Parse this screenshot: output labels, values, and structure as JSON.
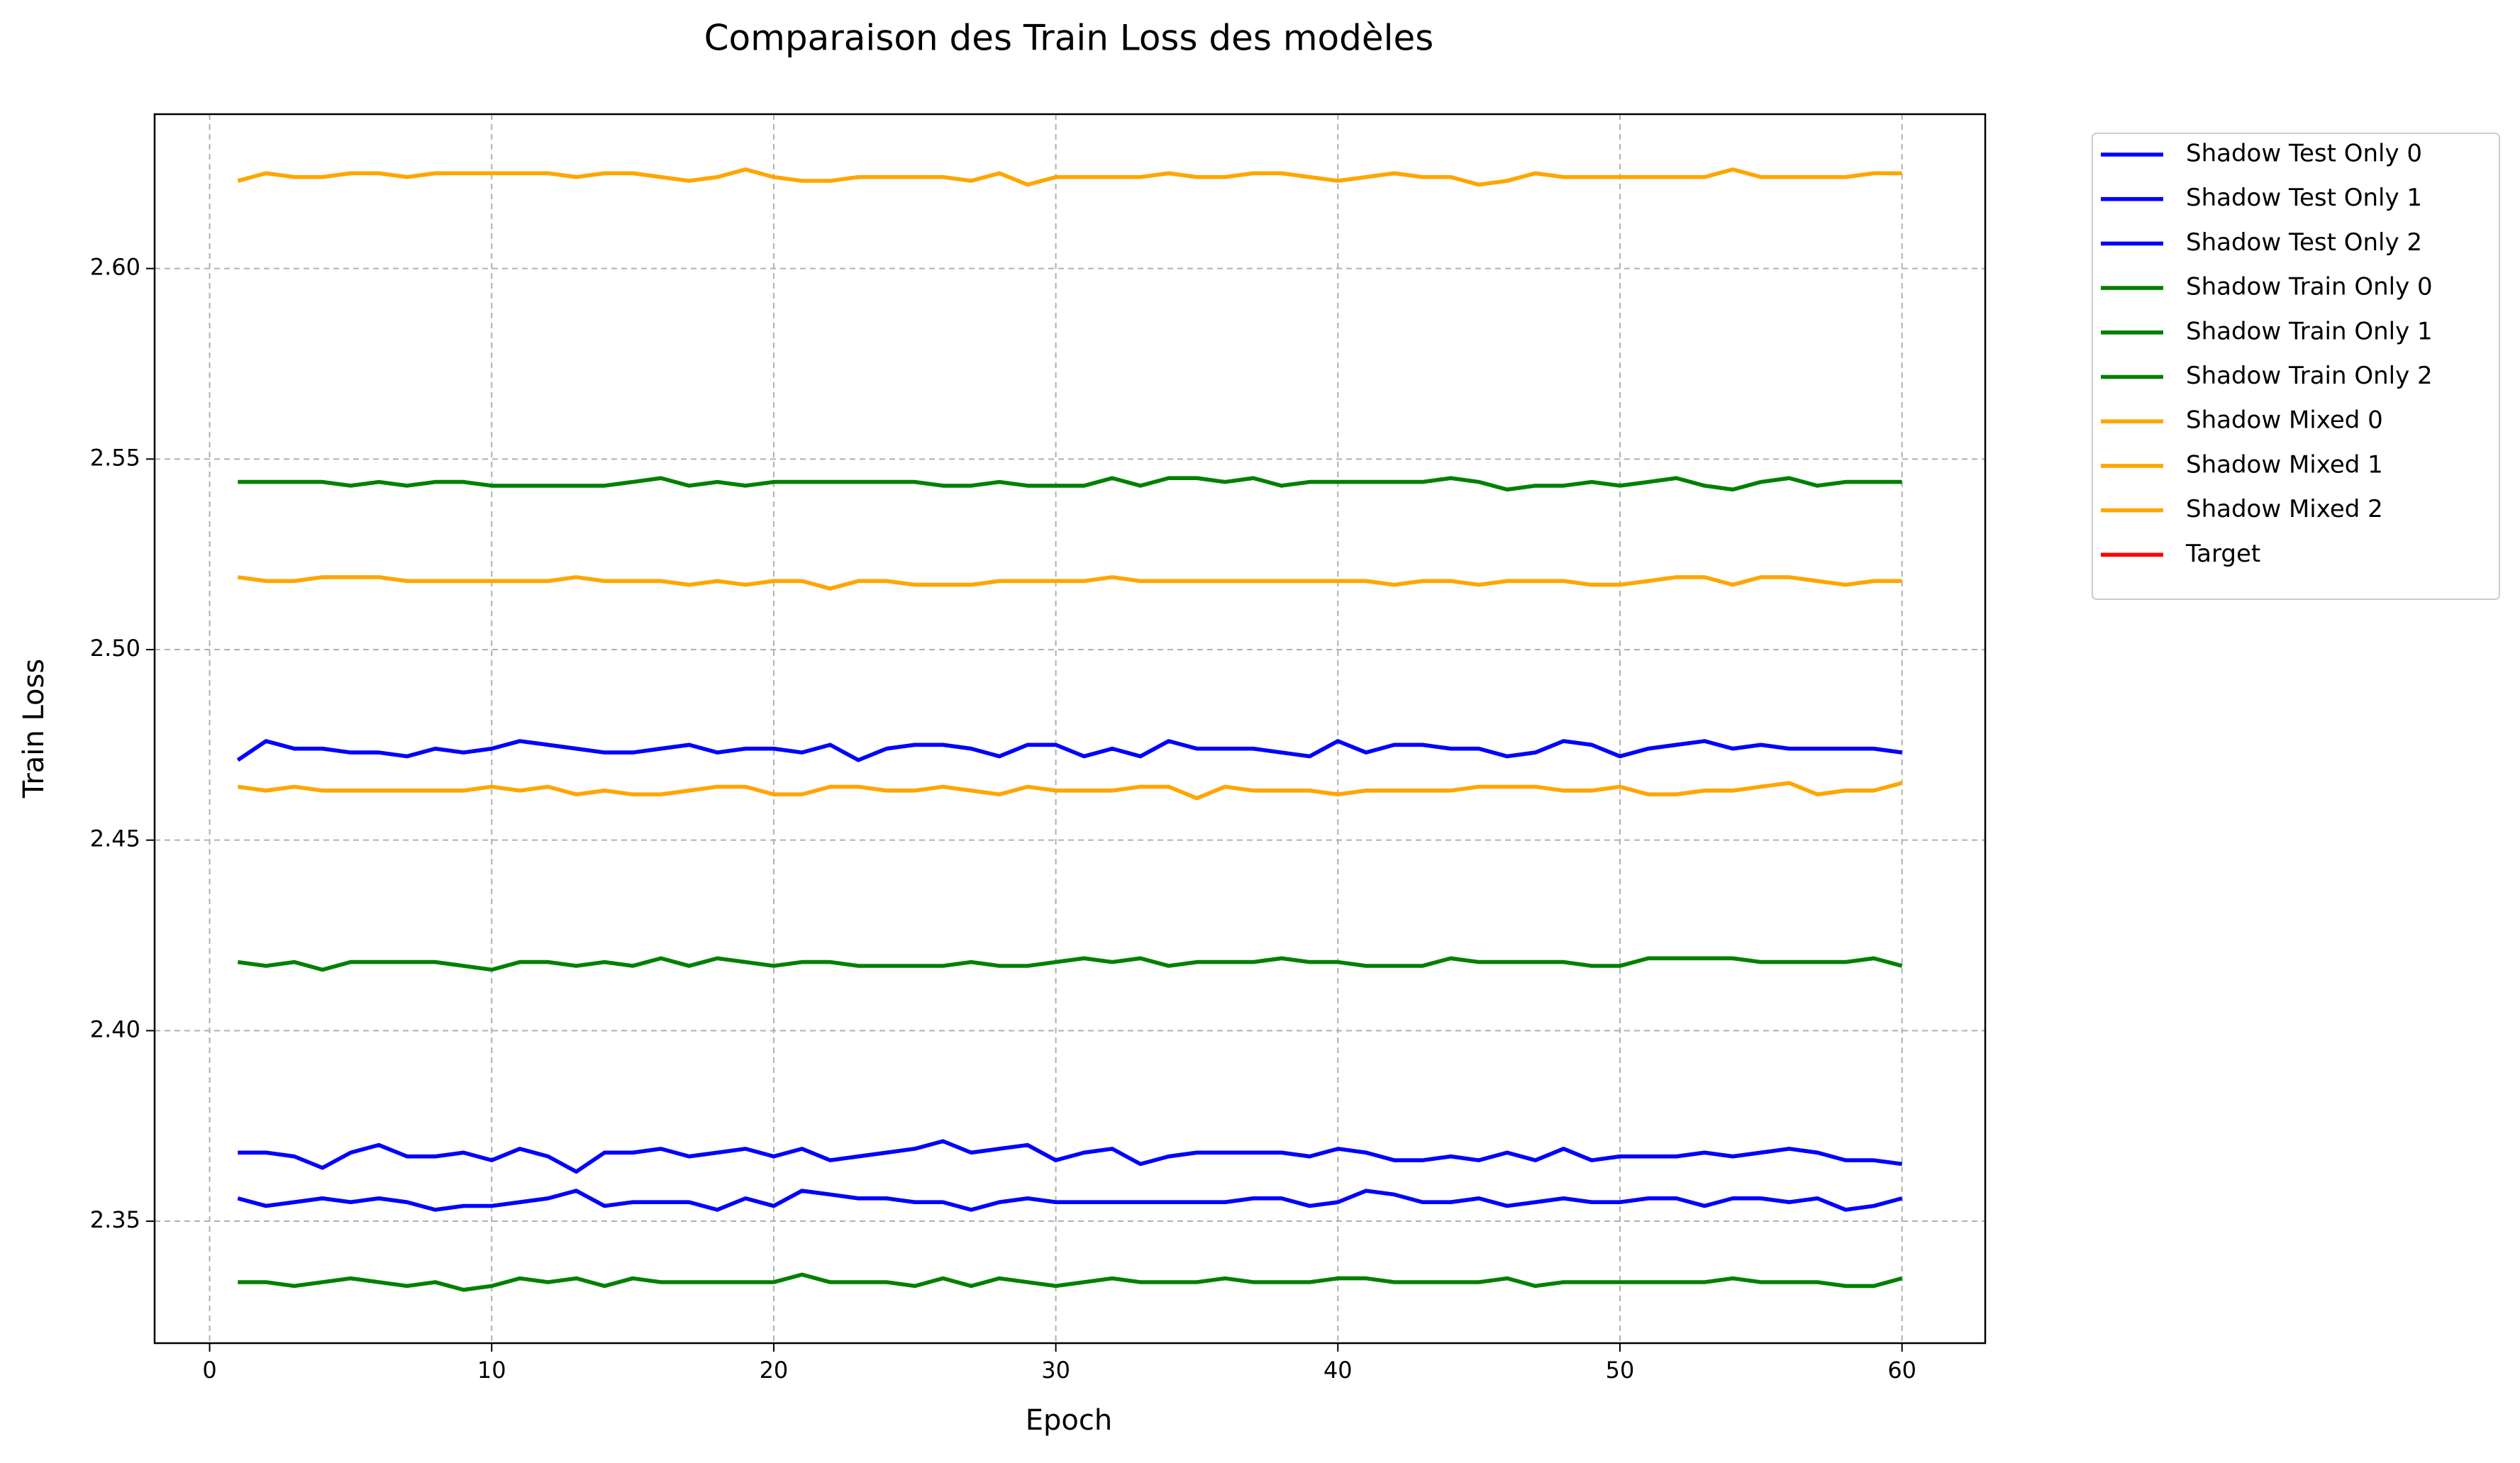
{
  "chart_data": {
    "type": "line",
    "title": "Comparaison des Train Loss des modèles",
    "xlabel": "Epoch",
    "ylabel": "Train Loss",
    "x": [
      1,
      2,
      3,
      4,
      5,
      6,
      7,
      8,
      9,
      10,
      11,
      12,
      13,
      14,
      15,
      16,
      17,
      18,
      19,
      20,
      21,
      22,
      23,
      24,
      25,
      26,
      27,
      28,
      29,
      30,
      31,
      32,
      33,
      34,
      35,
      36,
      37,
      38,
      39,
      40,
      41,
      42,
      43,
      44,
      45,
      46,
      47,
      48,
      49,
      50,
      51,
      52,
      53,
      54,
      55,
      56,
      57,
      58,
      59,
      60
    ],
    "xlim": [
      -1.95,
      62.95
    ],
    "xticks": [
      0,
      10,
      20,
      30,
      40,
      50,
      60
    ],
    "ylim": [
      2.318,
      2.6405
    ],
    "yticks": [
      2.35,
      {
        "value": 2.4,
        "label": "2.40"
      },
      2.45,
      {
        "value": 2.5,
        "label": "2.50"
      },
      2.55,
      {
        "value": 2.6,
        "label": "2.60"
      }
    ],
    "grid": true,
    "legend": "outside upper right",
    "series": [
      {
        "name": "Shadow Test Only 0",
        "color": "#0000ff",
        "values": [
          2.471,
          2.476,
          2.474,
          2.474,
          2.473,
          2.473,
          2.472,
          2.474,
          2.473,
          2.474,
          2.476,
          2.475,
          2.474,
          2.473,
          2.473,
          2.474,
          2.475,
          2.473,
          2.474,
          2.474,
          2.473,
          2.475,
          2.471,
          2.474,
          2.475,
          2.475,
          2.474,
          2.472,
          2.475,
          2.475,
          2.472,
          2.474,
          2.472,
          2.476,
          2.474,
          2.474,
          2.474,
          2.473,
          2.472,
          2.476,
          2.473,
          2.475,
          2.475,
          2.474,
          2.474,
          2.472,
          2.473,
          2.476,
          2.475,
          2.472,
          2.474,
          2.475,
          2.476,
          2.474,
          2.475,
          2.474,
          2.474,
          2.474,
          2.474,
          2.473
        ]
      },
      {
        "name": "Shadow Test Only 1",
        "color": "#0000ff",
        "values": [
          2.368,
          2.368,
          2.367,
          2.364,
          2.368,
          2.37,
          2.367,
          2.367,
          2.368,
          2.366,
          2.369,
          2.367,
          2.363,
          2.368,
          2.368,
          2.369,
          2.367,
          2.368,
          2.369,
          2.367,
          2.369,
          2.366,
          2.367,
          2.368,
          2.369,
          2.371,
          2.368,
          2.369,
          2.37,
          2.366,
          2.368,
          2.369,
          2.365,
          2.367,
          2.368,
          2.368,
          2.368,
          2.368,
          2.367,
          2.369,
          2.368,
          2.366,
          2.366,
          2.367,
          2.366,
          2.368,
          2.366,
          2.369,
          2.366,
          2.367,
          2.367,
          2.367,
          2.368,
          2.367,
          2.368,
          2.369,
          2.368,
          2.366,
          2.366,
          2.365
        ]
      },
      {
        "name": "Shadow Test Only 2",
        "color": "#0000ff",
        "values": [
          2.356,
          2.354,
          2.355,
          2.356,
          2.355,
          2.356,
          2.355,
          2.353,
          2.354,
          2.354,
          2.355,
          2.356,
          2.358,
          2.354,
          2.355,
          2.355,
          2.355,
          2.353,
          2.356,
          2.354,
          2.358,
          2.357,
          2.356,
          2.356,
          2.355,
          2.355,
          2.353,
          2.355,
          2.356,
          2.355,
          2.355,
          2.355,
          2.355,
          2.355,
          2.355,
          2.355,
          2.356,
          2.356,
          2.354,
          2.355,
          2.358,
          2.357,
          2.355,
          2.355,
          2.356,
          2.354,
          2.355,
          2.356,
          2.355,
          2.355,
          2.356,
          2.356,
          2.354,
          2.356,
          2.356,
          2.355,
          2.356,
          2.353,
          2.354,
          2.356
        ]
      },
      {
        "name": "Shadow Train Only 0",
        "color": "#008000",
        "values": [
          2.544,
          2.544,
          2.544,
          2.544,
          2.543,
          2.544,
          2.543,
          2.544,
          2.544,
          2.543,
          2.543,
          2.543,
          2.543,
          2.543,
          2.544,
          2.545,
          2.543,
          2.544,
          2.543,
          2.544,
          2.544,
          2.544,
          2.544,
          2.544,
          2.544,
          2.543,
          2.543,
          2.544,
          2.543,
          2.543,
          2.543,
          2.545,
          2.543,
          2.545,
          2.545,
          2.544,
          2.545,
          2.543,
          2.544,
          2.544,
          2.544,
          2.544,
          2.544,
          2.545,
          2.544,
          2.542,
          2.543,
          2.543,
          2.544,
          2.543,
          2.544,
          2.545,
          2.543,
          2.542,
          2.544,
          2.545,
          2.543,
          2.544,
          2.544,
          2.544
        ]
      },
      {
        "name": "Shadow Train Only 1",
        "color": "#008000",
        "values": [
          2.418,
          2.417,
          2.418,
          2.416,
          2.418,
          2.418,
          2.418,
          2.418,
          2.417,
          2.416,
          2.418,
          2.418,
          2.417,
          2.418,
          2.417,
          2.419,
          2.417,
          2.419,
          2.418,
          2.417,
          2.418,
          2.418,
          2.417,
          2.417,
          2.417,
          2.417,
          2.418,
          2.417,
          2.417,
          2.418,
          2.419,
          2.418,
          2.419,
          2.417,
          2.418,
          2.418,
          2.418,
          2.419,
          2.418,
          2.418,
          2.417,
          2.417,
          2.417,
          2.419,
          2.418,
          2.418,
          2.418,
          2.418,
          2.417,
          2.417,
          2.419,
          2.419,
          2.419,
          2.419,
          2.418,
          2.418,
          2.418,
          2.418,
          2.419,
          2.417
        ]
      },
      {
        "name": "Shadow Train Only 2",
        "color": "#008000",
        "values": [
          2.334,
          2.334,
          2.333,
          2.334,
          2.335,
          2.334,
          2.333,
          2.334,
          2.332,
          2.333,
          2.335,
          2.334,
          2.335,
          2.333,
          2.335,
          2.334,
          2.334,
          2.334,
          2.334,
          2.334,
          2.336,
          2.334,
          2.334,
          2.334,
          2.333,
          2.335,
          2.333,
          2.335,
          2.334,
          2.333,
          2.334,
          2.335,
          2.334,
          2.334,
          2.334,
          2.335,
          2.334,
          2.334,
          2.334,
          2.335,
          2.335,
          2.334,
          2.334,
          2.334,
          2.334,
          2.335,
          2.333,
          2.334,
          2.334,
          2.334,
          2.334,
          2.334,
          2.334,
          2.335,
          2.334,
          2.334,
          2.334,
          2.333,
          2.333,
          2.335
        ]
      },
      {
        "name": "Shadow Mixed 0",
        "color": "#ffa500",
        "values": [
          2.623,
          2.625,
          2.624,
          2.624,
          2.625,
          2.625,
          2.624,
          2.625,
          2.625,
          2.625,
          2.625,
          2.625,
          2.624,
          2.625,
          2.625,
          2.624,
          2.623,
          2.624,
          2.626,
          2.624,
          2.623,
          2.623,
          2.624,
          2.624,
          2.624,
          2.624,
          2.623,
          2.625,
          2.622,
          2.624,
          2.624,
          2.624,
          2.624,
          2.625,
          2.624,
          2.624,
          2.625,
          2.625,
          2.624,
          2.623,
          2.624,
          2.625,
          2.624,
          2.624,
          2.622,
          2.623,
          2.625,
          2.624,
          2.624,
          2.624,
          2.624,
          2.624,
          2.624,
          2.626,
          2.624,
          2.624,
          2.624,
          2.624,
          2.625,
          2.625
        ]
      },
      {
        "name": "Shadow Mixed 1",
        "color": "#ffa500",
        "values": [
          2.519,
          2.518,
          2.518,
          2.519,
          2.519,
          2.519,
          2.518,
          2.518,
          2.518,
          2.518,
          2.518,
          2.518,
          2.519,
          2.518,
          2.518,
          2.518,
          2.517,
          2.518,
          2.517,
          2.518,
          2.518,
          2.516,
          2.518,
          2.518,
          2.517,
          2.517,
          2.517,
          2.518,
          2.518,
          2.518,
          2.518,
          2.519,
          2.518,
          2.518,
          2.518,
          2.518,
          2.518,
          2.518,
          2.518,
          2.518,
          2.518,
          2.517,
          2.518,
          2.518,
          2.517,
          2.518,
          2.518,
          2.518,
          2.517,
          2.517,
          2.518,
          2.519,
          2.519,
          2.517,
          2.519,
          2.519,
          2.518,
          2.517,
          2.518,
          2.518
        ]
      },
      {
        "name": "Shadow Mixed 2",
        "color": "#ffa500",
        "values": [
          2.464,
          2.463,
          2.464,
          2.463,
          2.463,
          2.463,
          2.463,
          2.463,
          2.463,
          2.464,
          2.463,
          2.464,
          2.462,
          2.463,
          2.462,
          2.462,
          2.463,
          2.464,
          2.464,
          2.462,
          2.462,
          2.464,
          2.464,
          2.463,
          2.463,
          2.464,
          2.463,
          2.462,
          2.464,
          2.463,
          2.463,
          2.463,
          2.464,
          2.464,
          2.461,
          2.464,
          2.463,
          2.463,
          2.463,
          2.462,
          2.463,
          2.463,
          2.463,
          2.463,
          2.464,
          2.464,
          2.464,
          2.463,
          2.463,
          2.464,
          2.462,
          2.462,
          2.463,
          2.463,
          2.464,
          2.465,
          2.462,
          2.463,
          2.463,
          2.465
        ]
      },
      {
        "name": "Target",
        "color": "#ff0000",
        "values": [
          null,
          null,
          null,
          null,
          null,
          null,
          null,
          null,
          null,
          null,
          null,
          null,
          null,
          null,
          null,
          null,
          null,
          null,
          null,
          null,
          null,
          null,
          null,
          null,
          null,
          null,
          null,
          null,
          null,
          null,
          null,
          null,
          null,
          null,
          null,
          null,
          null,
          null,
          null,
          null,
          null,
          null,
          null,
          null,
          null,
          null,
          null,
          null,
          null,
          null,
          null,
          null,
          null,
          null,
          null,
          null,
          null,
          null,
          null,
          null
        ]
      }
    ]
  }
}
